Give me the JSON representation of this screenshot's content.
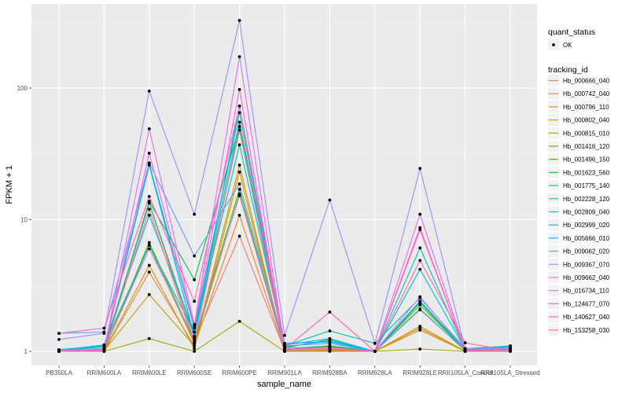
{
  "chart_data": {
    "type": "line",
    "title": "",
    "xlabel": "sample_name",
    "ylabel": "FPKM + 1",
    "y_scale": "log10",
    "ylim": [
      0.95,
      400
    ],
    "y_ticks": [
      1,
      10,
      100
    ],
    "y_tick_labels": [
      "1",
      "10",
      "100"
    ],
    "grid": true,
    "legend_position": "right",
    "categories": [
      "PB350LA",
      "RRIM600LA",
      "RRIM600LE",
      "RRIM600SE",
      "RRIM600PE",
      "RRIM901LA",
      "RRIM928BA",
      "RRIM928LA",
      "RRIM928LE",
      "RRII105LA_Control",
      "RRII105LA_Stressed"
    ],
    "shape_legend": {
      "title": "quant_status",
      "entries": [
        "OK"
      ]
    },
    "color_legend_title": "tracking_id",
    "series": [
      {
        "name": "Hb_000666_040",
        "color": "#F8766D",
        "values": [
          1.0,
          1.02,
          13.4,
          1.2,
          7.5,
          1.02,
          1.05,
          1.0,
          2.4,
          1.03,
          1.02
        ]
      },
      {
        "name": "Hb_000742_040",
        "color": "#EA8331",
        "values": [
          1.0,
          1.0,
          4.0,
          1.1,
          10.8,
          1.0,
          1.03,
          1.0,
          1.45,
          1.0,
          1.0
        ]
      },
      {
        "name": "Hb_000796_110",
        "color": "#D89000",
        "values": [
          1.0,
          1.0,
          4.5,
          1.05,
          23.0,
          1.0,
          1.02,
          1.0,
          1.55,
          1.0,
          1.0
        ]
      },
      {
        "name": "Hb_000802_040",
        "color": "#C09B00",
        "values": [
          1.0,
          1.01,
          2.7,
          1.1,
          26.0,
          1.01,
          1.01,
          1.0,
          1.5,
          1.0,
          1.01
        ]
      },
      {
        "name": "Hb_000815_010",
        "color": "#A3A500",
        "values": [
          1.0,
          1.0,
          1.25,
          1.0,
          1.69,
          1.0,
          1.0,
          1.0,
          1.04,
          1.0,
          1.0
        ]
      },
      {
        "name": "Hb_001416_120",
        "color": "#7CAE00",
        "values": [
          1.0,
          1.01,
          6.4,
          1.15,
          15.7,
          1.02,
          1.1,
          1.0,
          2.1,
          1.01,
          1.03
        ]
      },
      {
        "name": "Hb_001496_150",
        "color": "#39B600",
        "values": [
          1.0,
          1.02,
          6.7,
          1.2,
          17.0,
          1.03,
          1.08,
          1.0,
          2.25,
          1.02,
          1.04
        ]
      },
      {
        "name": "Hb_001623_560",
        "color": "#00BB4E",
        "values": [
          1.01,
          1.03,
          13.8,
          3.5,
          51.0,
          1.05,
          1.1,
          1.0,
          2.35,
          1.02,
          1.05
        ]
      },
      {
        "name": "Hb_001775_140",
        "color": "#00BF7D",
        "values": [
          1.02,
          1.05,
          13.4,
          1.3,
          48.0,
          1.06,
          1.23,
          1.0,
          2.4,
          1.02,
          1.06
        ]
      },
      {
        "name": "Hb_002228_120",
        "color": "#00C1A3",
        "values": [
          1.03,
          1.1,
          6.4,
          1.4,
          55.0,
          1.1,
          1.43,
          1.15,
          2.55,
          1.05,
          1.1
        ]
      },
      {
        "name": "Hb_002809_040",
        "color": "#00BFC4",
        "values": [
          1.02,
          1.08,
          26.4,
          1.5,
          65.0,
          1.08,
          1.2,
          1.0,
          6.1,
          1.03,
          1.08
        ]
      },
      {
        "name": "Hb_002999_020",
        "color": "#00B8E5",
        "values": [
          1.02,
          1.12,
          10.8,
          1.4,
          37.0,
          1.12,
          1.25,
          1.0,
          4.2,
          1.04,
          1.09
        ]
      },
      {
        "name": "Hb_005666_010",
        "color": "#00A9FF",
        "values": [
          1.01,
          1.05,
          26.0,
          1.3,
          73.0,
          1.15,
          1.18,
          1.0,
          2.4,
          1.03,
          1.05
        ]
      },
      {
        "name": "Hb_009062_020",
        "color": "#619CFF",
        "values": [
          1.37,
          1.4,
          27.0,
          5.3,
          18.7,
          1.1,
          1.15,
          1.0,
          2.07,
          1.02,
          1.04
        ]
      },
      {
        "name": "Hb_009367_070",
        "color": "#9F8CFF",
        "values": [
          1.23,
          1.37,
          95.0,
          11.0,
          326.0,
          1.32,
          14.1,
          1.15,
          24.5,
          1.05,
          1.06
        ]
      },
      {
        "name": "Hb_009662_040",
        "color": "#C77CFF",
        "values": [
          1.02,
          1.04,
          6.0,
          1.25,
          15.2,
          1.04,
          1.05,
          1.0,
          2.6,
          1.02,
          1.03
        ]
      },
      {
        "name": "Hb_016734_110",
        "color": "#E76BF3",
        "values": [
          1.01,
          1.03,
          49.0,
          1.6,
          173.0,
          1.05,
          1.07,
          1.0,
          11.0,
          1.03,
          1.03
        ]
      },
      {
        "name": "Hb_124677_070",
        "color": "#FA62DB",
        "values": [
          1.0,
          1.02,
          32.0,
          1.55,
          97.5,
          1.03,
          1.05,
          1.0,
          8.7,
          1.01,
          1.02
        ]
      },
      {
        "name": "Hb_140627_040",
        "color": "#FF62BC",
        "values": [
          1.37,
          1.5,
          15.0,
          2.4,
          73.0,
          1.04,
          1.99,
          1.0,
          8.4,
          1.02,
          1.01
        ]
      },
      {
        "name": "Hb_153258_030",
        "color": "#FF6C91",
        "values": [
          1.0,
          1.01,
          12.0,
          1.15,
          51.0,
          1.03,
          1.04,
          1.0,
          4.9,
          1.16,
          1.01
        ]
      }
    ]
  }
}
